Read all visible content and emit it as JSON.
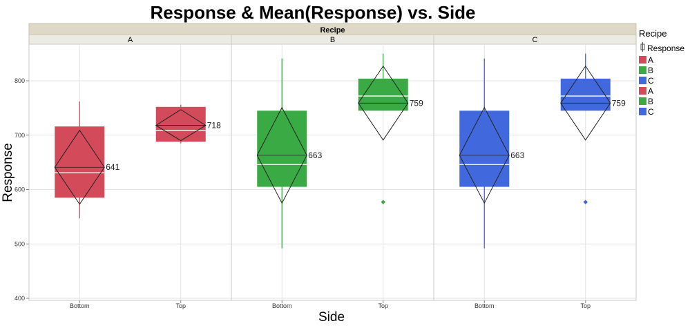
{
  "chart_data": {
    "type": "box",
    "title": "Response & Mean(Response) vs. Side",
    "xlabel": "Side",
    "ylabel": "Response",
    "ylim": [
      400,
      850
    ],
    "yticks": [
      400,
      500,
      600,
      700,
      800
    ],
    "grid": true,
    "group_header": "Recipe",
    "legend": {
      "title": "Recipe",
      "placement": "right",
      "response_label": "Response",
      "entries": [
        {
          "label": "A",
          "color": "#d34a5a"
        },
        {
          "label": "B",
          "color": "#3aaa45"
        },
        {
          "label": "C",
          "color": "#4169dd"
        },
        {
          "label": "A",
          "color": "#d34a5a"
        },
        {
          "label": "B",
          "color": "#3aaa45"
        },
        {
          "label": "C",
          "color": "#4169dd"
        }
      ]
    },
    "panels": [
      {
        "name": "A",
        "color": "#d34a5a",
        "boxes": [
          {
            "category": "Bottom",
            "min": 547,
            "q1": 585,
            "median": 631,
            "q3": 716,
            "max": 762,
            "mean": 641,
            "ci_low": 573,
            "ci_high": 709,
            "mean_label": "641",
            "outliers": []
          },
          {
            "category": "Top",
            "min": 685,
            "q1": 688,
            "median": 709,
            "q3": 752,
            "max": 756,
            "mean": 718,
            "ci_low": 690,
            "ci_high": 747,
            "mean_label": "718",
            "outliers": []
          }
        ]
      },
      {
        "name": "B",
        "color": "#3aaa45",
        "boxes": [
          {
            "category": "Bottom",
            "min": 492,
            "q1": 605,
            "median": 646,
            "q3": 745,
            "max": 841,
            "mean": 663,
            "ci_low": 575,
            "ci_high": 751,
            "mean_label": "663",
            "outliers": []
          },
          {
            "category": "Top",
            "min": 745,
            "q1": 745,
            "median": 772,
            "q3": 804,
            "max": 850,
            "mean": 759,
            "ci_low": 691,
            "ci_high": 827,
            "mean_label": "759",
            "outliers": [
              577
            ]
          }
        ]
      },
      {
        "name": "C",
        "color": "#4169dd",
        "boxes": [
          {
            "category": "Bottom",
            "min": 492,
            "q1": 605,
            "median": 646,
            "q3": 745,
            "max": 841,
            "mean": 663,
            "ci_low": 575,
            "ci_high": 751,
            "mean_label": "663",
            "outliers": []
          },
          {
            "category": "Top",
            "min": 745,
            "q1": 745,
            "median": 772,
            "q3": 804,
            "max": 850,
            "mean": 759,
            "ci_low": 691,
            "ci_high": 827,
            "mean_label": "759",
            "outliers": [
              577
            ]
          }
        ]
      }
    ]
  }
}
